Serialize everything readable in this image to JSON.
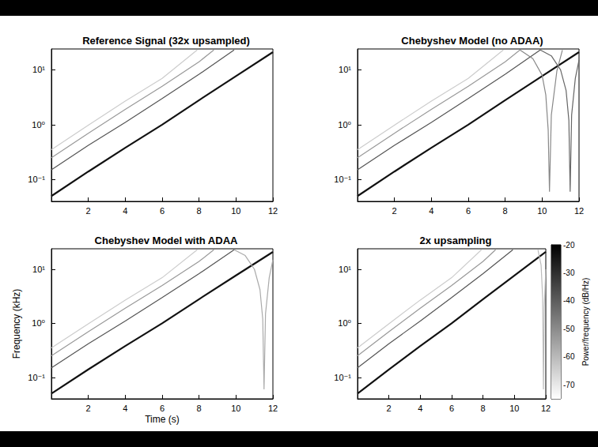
{
  "chart_data": [
    {
      "type": "line",
      "title": "Reference Signal (32x upsampled)",
      "log": "y",
      "grid": false,
      "xlim": [
        0,
        12
      ],
      "xticks": [
        2,
        4,
        6,
        8,
        10,
        12
      ],
      "ylim": [
        0.04,
        24
      ],
      "yticks": [
        {
          "value": 0.1,
          "label": "10⁻¹"
        },
        {
          "value": 1,
          "label": "10⁰"
        },
        {
          "value": 10,
          "label": "10¹"
        }
      ],
      "series": [
        {
          "color": "#111111",
          "x": [
            0,
            2,
            4,
            6,
            8,
            10,
            12
          ],
          "values": [
            0.05,
            0.14,
            0.38,
            1.0,
            2.8,
            7.7,
            21
          ]
        },
        {
          "color": "#555555",
          "x": [
            0,
            2,
            4,
            6,
            8,
            9.9
          ],
          "values": [
            0.15,
            0.42,
            1.1,
            3.0,
            8.3,
            23
          ]
        },
        {
          "color": "#999999",
          "x": [
            0,
            2,
            4,
            6,
            8,
            8.8
          ],
          "values": [
            0.25,
            0.7,
            1.9,
            5.0,
            14,
            23
          ]
        },
        {
          "color": "#cccccc",
          "x": [
            0,
            2,
            4,
            6,
            7.9
          ],
          "values": [
            0.35,
            0.98,
            2.7,
            7.0,
            23
          ]
        }
      ]
    },
    {
      "type": "line",
      "title": "Chebyshev Model (no ADAA)",
      "log": "y",
      "grid": false,
      "xlim": [
        0,
        12
      ],
      "xticks": [
        2,
        4,
        6,
        8,
        10,
        12
      ],
      "ylim": [
        0.04,
        24
      ],
      "yticks": [
        {
          "value": 0.1,
          "label": "10⁻¹"
        },
        {
          "value": 1,
          "label": "10⁰"
        },
        {
          "value": 10,
          "label": "10¹"
        }
      ],
      "series": [
        {
          "color": "#111111",
          "x": [
            0,
            2,
            4,
            6,
            8,
            10,
            12
          ],
          "values": [
            0.05,
            0.14,
            0.38,
            1.0,
            2.8,
            7.7,
            21
          ]
        },
        {
          "color": "#555555",
          "x": [
            0,
            2,
            4,
            6,
            8,
            9.9
          ],
          "values": [
            0.15,
            0.42,
            1.1,
            3.0,
            8.3,
            23
          ]
        },
        {
          "color": "#999999",
          "x": [
            0,
            2,
            4,
            6,
            8,
            8.8
          ],
          "values": [
            0.25,
            0.7,
            1.9,
            5.0,
            14,
            23
          ]
        },
        {
          "color": "#cccccc",
          "x": [
            0,
            2,
            4,
            6,
            7.9
          ],
          "values": [
            0.35,
            0.98,
            2.7,
            7.0,
            23
          ]
        },
        {
          "color": "#666666",
          "x": [
            9.9,
            10.5,
            11,
            11.3,
            11.45,
            11.52,
            11.6,
            11.8,
            12
          ],
          "values": [
            23,
            18,
            10,
            4.2,
            1.2,
            0.06,
            1.5,
            7,
            15
          ]
        },
        {
          "color": "#888888",
          "x": [
            8.8,
            9.5,
            10,
            10.2,
            10.33,
            10.4,
            10.5,
            10.8,
            11.1
          ],
          "values": [
            23,
            16,
            8,
            3.5,
            0.8,
            0.06,
            1.5,
            9.5,
            23
          ]
        }
      ]
    },
    {
      "type": "line",
      "title": "Chebyshev Model with ADAA",
      "log": "y",
      "grid": false,
      "xlabel": "Time (s)",
      "ylabel": "Frequency (kHz)",
      "xlim": [
        0,
        12
      ],
      "xticks": [
        2,
        4,
        6,
        8,
        10,
        12
      ],
      "ylim": [
        0.04,
        24
      ],
      "yticks": [
        {
          "value": 0.1,
          "label": "10⁻¹"
        },
        {
          "value": 1,
          "label": "10⁰"
        },
        {
          "value": 10,
          "label": "10¹"
        }
      ],
      "series": [
        {
          "color": "#111111",
          "x": [
            0,
            2,
            4,
            6,
            8,
            10,
            12
          ],
          "values": [
            0.05,
            0.14,
            0.38,
            1.0,
            2.8,
            7.7,
            21
          ]
        },
        {
          "color": "#555555",
          "x": [
            0,
            2,
            4,
            6,
            8,
            9.9
          ],
          "values": [
            0.15,
            0.42,
            1.1,
            3.0,
            8.3,
            23
          ]
        },
        {
          "color": "#999999",
          "x": [
            0,
            2,
            4,
            6,
            8,
            8.8
          ],
          "values": [
            0.25,
            0.7,
            1.9,
            5.0,
            14,
            23
          ]
        },
        {
          "color": "#cccccc",
          "x": [
            0,
            2,
            4,
            6,
            7.9
          ],
          "values": [
            0.35,
            0.98,
            2.7,
            7.0,
            23
          ]
        },
        {
          "color": "#aaaaaa",
          "x": [
            9.9,
            10.5,
            11,
            11.3,
            11.45,
            11.52,
            11.6,
            11.8,
            12
          ],
          "values": [
            23,
            18,
            10,
            4.2,
            1.2,
            0.06,
            1.5,
            7,
            15
          ]
        }
      ]
    },
    {
      "type": "line",
      "title": "2x upsampling",
      "log": "y",
      "grid": false,
      "xlim": [
        0,
        12
      ],
      "xticks": [
        2,
        4,
        6,
        8,
        10,
        12
      ],
      "ylim": [
        0.04,
        24
      ],
      "yticks": [
        {
          "value": 0.1,
          "label": "10⁻¹"
        },
        {
          "value": 1,
          "label": "10⁰"
        },
        {
          "value": 10,
          "label": "10¹"
        }
      ],
      "series": [
        {
          "color": "#111111",
          "x": [
            0,
            2,
            4,
            6,
            8,
            10,
            12
          ],
          "values": [
            0.05,
            0.14,
            0.38,
            1.0,
            2.8,
            7.7,
            21
          ]
        },
        {
          "color": "#555555",
          "x": [
            0,
            2,
            4,
            6,
            8,
            9.9
          ],
          "values": [
            0.15,
            0.42,
            1.1,
            3.0,
            8.3,
            23
          ]
        },
        {
          "color": "#999999",
          "x": [
            0,
            2,
            4,
            6,
            8,
            8.8
          ],
          "values": [
            0.25,
            0.7,
            1.9,
            5.0,
            14,
            23
          ]
        },
        {
          "color": "#cccccc",
          "x": [
            0,
            2,
            4,
            6,
            7.9
          ],
          "values": [
            0.35,
            0.98,
            2.7,
            7.0,
            23
          ]
        },
        {
          "color": "#bbbbbb",
          "x": [
            11.5,
            11.7,
            11.8,
            11.85,
            11.9,
            12
          ],
          "values": [
            23,
            12,
            3,
            0.06,
            2,
            10
          ]
        }
      ],
      "colorbar": {
        "range": [
          -75,
          -20
        ],
        "ticks": [
          -20,
          -30,
          -40,
          -50,
          -60,
          -70
        ],
        "label": "Power/frequency (dB/Hz)"
      }
    }
  ]
}
